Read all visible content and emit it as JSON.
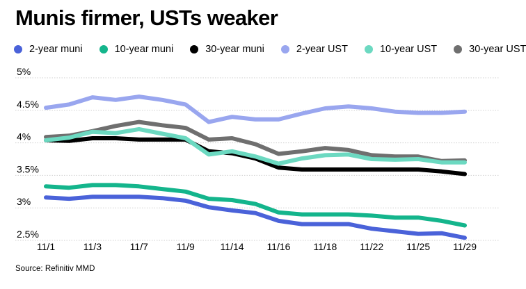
{
  "chart_data": {
    "type": "line",
    "title": "Munis firmer, USTs weaker",
    "source": "Source: Refinitiv MMD",
    "xlabel": "",
    "ylabel": "",
    "x_tick_labels": [
      "11/1",
      "11/3",
      "11/7",
      "11/9",
      "11/14",
      "11/16",
      "11/18",
      "11/22",
      "11/25",
      "11/29"
    ],
    "y_tick_labels": [
      "5%",
      "4.5%",
      "4%",
      "3.5%",
      "3%",
      "2.5%"
    ],
    "y_ticks": [
      5,
      4.5,
      4,
      3.5,
      3,
      2.5
    ],
    "ylim": [
      2.5,
      5
    ],
    "grid": true,
    "legend_position": "top",
    "series": [
      {
        "name": "2-year muni",
        "color": "#4a62d9",
        "values": [
          3.16,
          3.14,
          3.17,
          3.17,
          3.17,
          3.15,
          3.11,
          3.01,
          2.96,
          2.92,
          2.8,
          2.75,
          2.75,
          2.75,
          2.68,
          2.64,
          2.6,
          2.61,
          2.54
        ]
      },
      {
        "name": "10-year muni",
        "color": "#14b58c",
        "values": [
          3.33,
          3.31,
          3.35,
          3.35,
          3.33,
          3.29,
          3.25,
          3.14,
          3.12,
          3.06,
          2.93,
          2.9,
          2.9,
          2.9,
          2.88,
          2.85,
          2.85,
          2.8,
          2.73
        ]
      },
      {
        "name": "30-year muni",
        "color": "#000000",
        "values": [
          4.04,
          4.03,
          4.07,
          4.07,
          4.05,
          4.05,
          4.05,
          3.87,
          3.84,
          3.76,
          3.62,
          3.59,
          3.59,
          3.59,
          3.59,
          3.59,
          3.59,
          3.56,
          3.52
        ]
      },
      {
        "name": "2-year UST",
        "color": "#99a6ef",
        "values": [
          4.54,
          4.59,
          4.7,
          4.66,
          4.71,
          4.66,
          4.59,
          4.32,
          4.4,
          4.36,
          4.36,
          4.45,
          4.53,
          4.56,
          4.53,
          4.48,
          4.46,
          4.46,
          4.48
        ]
      },
      {
        "name": "10-year UST",
        "color": "#6cd9c1",
        "values": [
          4.04,
          4.08,
          4.17,
          4.15,
          4.21,
          4.14,
          4.07,
          3.82,
          3.87,
          3.79,
          3.68,
          3.76,
          3.81,
          3.82,
          3.75,
          3.74,
          3.75,
          3.7,
          3.7
        ]
      },
      {
        "name": "30-year UST",
        "color": "#6f6f6f",
        "values": [
          4.09,
          4.11,
          4.18,
          4.26,
          4.32,
          4.27,
          4.23,
          4.05,
          4.07,
          3.98,
          3.83,
          3.87,
          3.92,
          3.89,
          3.81,
          3.79,
          3.79,
          3.72,
          3.73
        ]
      }
    ]
  }
}
